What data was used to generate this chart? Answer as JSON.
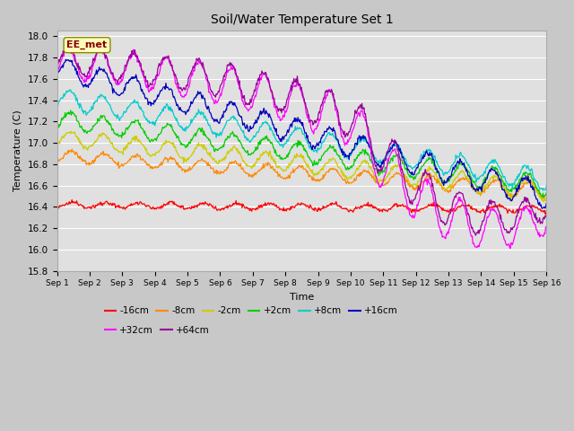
{
  "title": "Soil/Water Temperature Set 1",
  "xlabel": "Time",
  "ylabel": "Temperature (C)",
  "ylim": [
    15.8,
    18.05
  ],
  "xlim": [
    0,
    15
  ],
  "xtick_labels": [
    "Sep 1",
    "Sep 2",
    "Sep 3",
    "Sep 4",
    "Sep 5",
    "Sep 6",
    "Sep 7",
    "Sep 8",
    "Sep 9",
    "Sep 10",
    "Sep 11",
    "Sep 12",
    "Sep 13",
    "Sep 14",
    "Sep 15",
    "Sep 16"
  ],
  "ytick_vals": [
    15.8,
    16.0,
    16.2,
    16.4,
    16.6,
    16.8,
    17.0,
    17.2,
    17.4,
    17.6,
    17.8,
    18.0
  ],
  "series_order": [
    "-16cm",
    "-8cm",
    "-2cm",
    "+2cm",
    "+8cm",
    "+16cm",
    "+32cm",
    "+64cm"
  ],
  "series": {
    "-16cm": {
      "color": "#ff0000"
    },
    "-8cm": {
      "color": "#ff8800"
    },
    "-2cm": {
      "color": "#cccc00"
    },
    "+2cm": {
      "color": "#00cc00"
    },
    "+8cm": {
      "color": "#00cccc"
    },
    "+16cm": {
      "color": "#0000bb"
    },
    "+32cm": {
      "color": "#ff00ff"
    },
    "+64cm": {
      "color": "#990099"
    }
  },
  "annotation_text": "EE_met",
  "fig_facecolor": "#c8c8c8",
  "ax_facecolor": "#e0e0e0",
  "grid_color": "#ffffff"
}
